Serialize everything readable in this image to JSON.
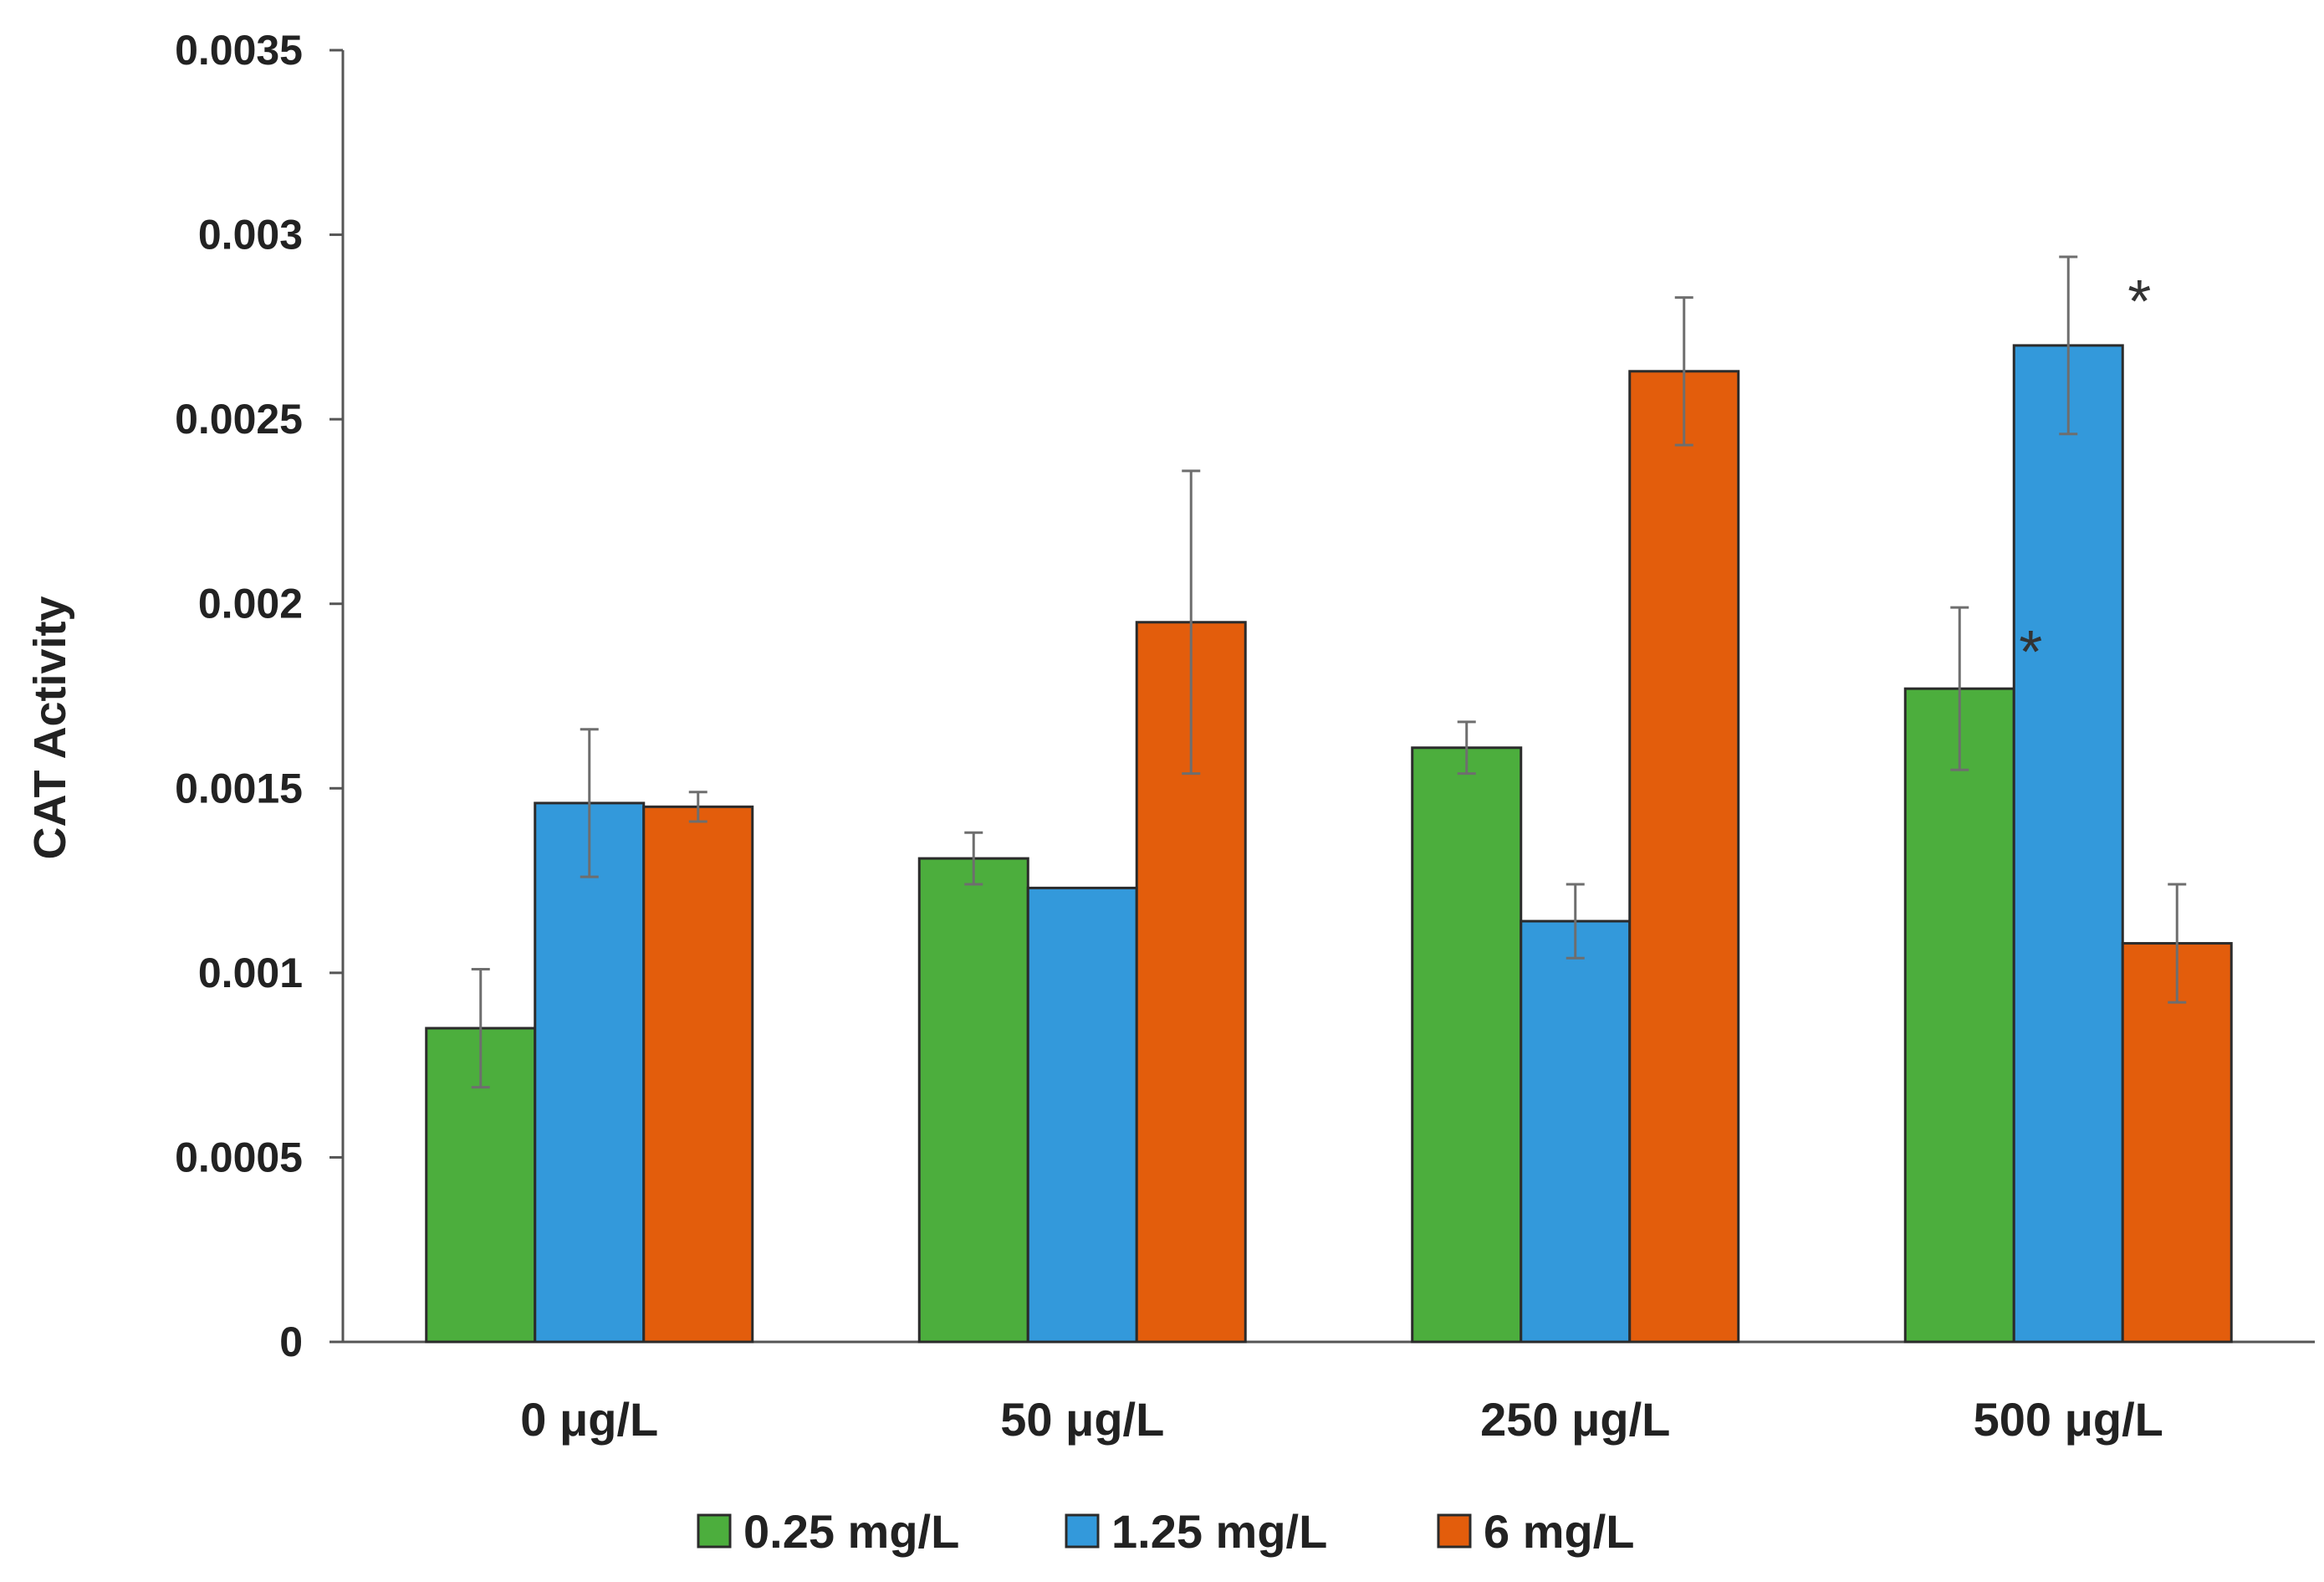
{
  "chart_data": {
    "type": "bar",
    "title": "",
    "xlabel": "",
    "ylabel": "CAT Activity",
    "ylim": [
      0,
      0.0035
    ],
    "yticks": [
      "0",
      "0.0005",
      "0.001",
      "0.0015",
      "0.002",
      "0.0025",
      "0.003",
      "0.0035"
    ],
    "ytick_values": [
      0,
      0.0005,
      0.001,
      0.0015,
      0.002,
      0.0025,
      0.003,
      0.0035
    ],
    "grid": false,
    "legend_position": "bottom",
    "categories": [
      "0 μg/L",
      "50 μg/L",
      "250 μg/L",
      "500 μg/L"
    ],
    "series": [
      {
        "name": "0.25 mg/L",
        "color": "#4cae3d",
        "values": [
          0.00085,
          0.00131,
          0.00161,
          0.00177
        ],
        "errors": [
          0.00016,
          7e-05,
          7e-05,
          0.00022
        ],
        "annotations": [
          "",
          "",
          "",
          "*"
        ]
      },
      {
        "name": "1.25 mg/L",
        "color": "#3399db",
        "values": [
          0.00146,
          0.00123,
          0.00114,
          0.0027
        ],
        "errors": [
          0.0002,
          0.0,
          0.0001,
          0.00024
        ],
        "annotations": [
          "",
          "",
          "",
          "*"
        ]
      },
      {
        "name": "6 mg/L",
        "color": "#e35d0c",
        "values": [
          0.00145,
          0.00195,
          0.00263,
          0.00108
        ],
        "errors": [
          4e-05,
          0.00041,
          0.0002,
          0.00016
        ],
        "annotations": [
          "",
          "",
          "",
          ""
        ]
      }
    ]
  }
}
